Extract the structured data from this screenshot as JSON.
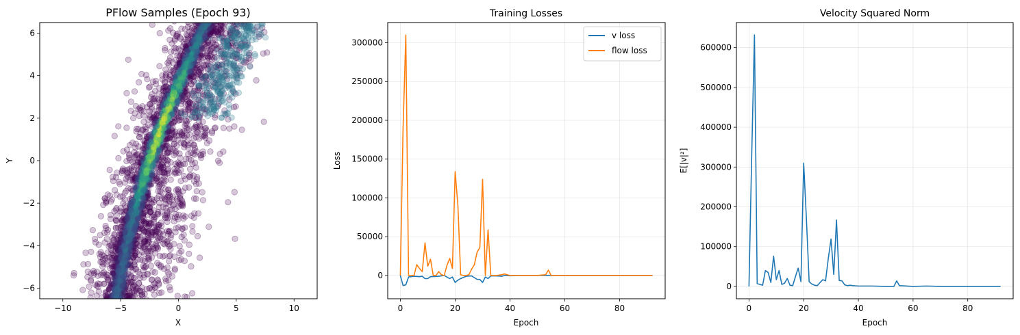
{
  "chart_data": [
    {
      "type": "scatter",
      "title": "PFlow Samples (Epoch 93)",
      "xlabel": "X",
      "ylabel": "Y",
      "xlim": [
        -12,
        12
      ],
      "ylim": [
        -6.5,
        6.5
      ],
      "xticks": [
        -10,
        -5,
        0,
        5,
        10
      ],
      "yticks": [
        -6,
        -4,
        -2,
        0,
        2,
        4,
        6
      ],
      "grid": false,
      "colormap": "viridis",
      "point_alpha": 0.25,
      "sample_band": {
        "description_points": [
          {
            "y": -6,
            "x_center": -5.2
          },
          {
            "y": -4,
            "x_center": -4.5
          },
          {
            "y": -2,
            "x_center": -3.6
          },
          {
            "y": 0,
            "x_center": -2.5
          },
          {
            "y": 2,
            "x_center": -1.2
          },
          {
            "y": 4,
            "x_center": 0.3
          },
          {
            "y": 6,
            "x_center": 2.0
          }
        ]
      },
      "colors": {
        "low": "#440154",
        "mid": "#21918c",
        "high": "#fde725"
      }
    },
    {
      "type": "line",
      "title": "Training Losses",
      "xlabel": "Epoch",
      "ylabel": "Loss",
      "xlim": [
        -4.6,
        96.6
      ],
      "ylim": [
        -30000,
        326000
      ],
      "xticks": [
        0,
        20,
        40,
        60,
        80
      ],
      "yticks": [
        0,
        50000,
        100000,
        150000,
        200000,
        250000,
        300000
      ],
      "grid": true,
      "legend": "top-right",
      "series": [
        {
          "name": "v loss",
          "color": "#1f77b4",
          "points": [
            [
              0,
              0
            ],
            [
              1,
              -13000
            ],
            [
              2,
              -12000
            ],
            [
              3,
              -2000
            ],
            [
              5,
              -1000
            ],
            [
              7,
              -1500
            ],
            [
              8,
              -1000
            ],
            [
              9,
              -4000
            ],
            [
              10,
              -4000
            ],
            [
              11,
              -1500
            ],
            [
              14,
              -1000
            ],
            [
              16,
              0
            ],
            [
              18,
              -4000
            ],
            [
              19,
              -2000
            ],
            [
              20,
              -9000
            ],
            [
              21,
              -6000
            ],
            [
              22,
              -4000
            ],
            [
              24,
              -1000
            ],
            [
              26,
              -500
            ],
            [
              28,
              -5000
            ],
            [
              29,
              -5000
            ],
            [
              30,
              -9000
            ],
            [
              31,
              -2000
            ],
            [
              32,
              -4000
            ],
            [
              33,
              -500
            ],
            [
              35,
              -500
            ],
            [
              37,
              -1000
            ],
            [
              38,
              0
            ],
            [
              40,
              -300
            ],
            [
              45,
              0
            ],
            [
              50,
              0
            ],
            [
              55,
              0
            ],
            [
              60,
              0
            ],
            [
              70,
              0
            ],
            [
              80,
              0
            ],
            [
              92,
              0
            ]
          ]
        },
        {
          "name": "flow loss",
          "color": "#ff7f0e",
          "points": [
            [
              0,
              0
            ],
            [
              1,
              190000
            ],
            [
              2,
              310000
            ],
            [
              3,
              0
            ],
            [
              4,
              0
            ],
            [
              5,
              0
            ],
            [
              6,
              14000
            ],
            [
              7,
              9000
            ],
            [
              8,
              5000
            ],
            [
              9,
              42000
            ],
            [
              10,
              12000
            ],
            [
              11,
              21000
            ],
            [
              12,
              0
            ],
            [
              13,
              0
            ],
            [
              14,
              5000
            ],
            [
              15,
              1000
            ],
            [
              16,
              0
            ],
            [
              17,
              13000
            ],
            [
              18,
              22000
            ],
            [
              19,
              9000
            ],
            [
              20,
              134000
            ],
            [
              21,
              90000
            ],
            [
              22,
              1000
            ],
            [
              23,
              0
            ],
            [
              24,
              0
            ],
            [
              25,
              1000
            ],
            [
              26,
              8000
            ],
            [
              27,
              14000
            ],
            [
              28,
              30000
            ],
            [
              29,
              36000
            ],
            [
              30,
              124000
            ],
            [
              31,
              0
            ],
            [
              32,
              59000
            ],
            [
              33,
              0
            ],
            [
              35,
              0
            ],
            [
              37,
              1000
            ],
            [
              38,
              2000
            ],
            [
              40,
              0
            ],
            [
              45,
              0
            ],
            [
              50,
              0
            ],
            [
              53,
              1000
            ],
            [
              54,
              7000
            ],
            [
              55,
              0
            ],
            [
              60,
              0
            ],
            [
              70,
              0
            ],
            [
              80,
              0
            ],
            [
              92,
              0
            ]
          ]
        }
      ]
    },
    {
      "type": "line",
      "title": "Velocity Squared Norm",
      "xlabel": "Epoch",
      "ylabel": "E[|v|²]",
      "xlim": [
        -4.6,
        96.6
      ],
      "ylim": [
        -31000,
        663000
      ],
      "xticks": [
        0,
        20,
        40,
        60,
        80
      ],
      "yticks": [
        0,
        100000,
        200000,
        300000,
        400000,
        500000,
        600000
      ],
      "grid": true,
      "series": [
        {
          "color": "#1f77b4",
          "points": [
            [
              0,
              0
            ],
            [
              1,
              330000
            ],
            [
              2,
              632000
            ],
            [
              3,
              7000
            ],
            [
              4,
              5000
            ],
            [
              5,
              3000
            ],
            [
              6,
              40000
            ],
            [
              7,
              35000
            ],
            [
              8,
              10000
            ],
            [
              9,
              76000
            ],
            [
              10,
              17000
            ],
            [
              11,
              40000
            ],
            [
              12,
              5000
            ],
            [
              13,
              8000
            ],
            [
              14,
              20000
            ],
            [
              15,
              3000
            ],
            [
              16,
              2000
            ],
            [
              17,
              25000
            ],
            [
              18,
              46000
            ],
            [
              19,
              12000
            ],
            [
              20,
              310000
            ],
            [
              21,
              170000
            ],
            [
              22,
              12000
            ],
            [
              23,
              6000
            ],
            [
              24,
              3000
            ],
            [
              25,
              2000
            ],
            [
              26,
              10000
            ],
            [
              27,
              17000
            ],
            [
              28,
              14000
            ],
            [
              29,
              70000
            ],
            [
              30,
              119000
            ],
            [
              31,
              30000
            ],
            [
              32,
              167000
            ],
            [
              33,
              15000
            ],
            [
              34,
              14000
            ],
            [
              35,
              4000
            ],
            [
              36,
              2000
            ],
            [
              37,
              3000
            ],
            [
              38,
              2000
            ],
            [
              40,
              1000
            ],
            [
              45,
              1000
            ],
            [
              50,
              0
            ],
            [
              53,
              0
            ],
            [
              54,
              14000
            ],
            [
              55,
              2000
            ],
            [
              60,
              0
            ],
            [
              65,
              1000
            ],
            [
              70,
              0
            ],
            [
              80,
              0
            ],
            [
              92,
              0
            ]
          ]
        }
      ]
    }
  ]
}
